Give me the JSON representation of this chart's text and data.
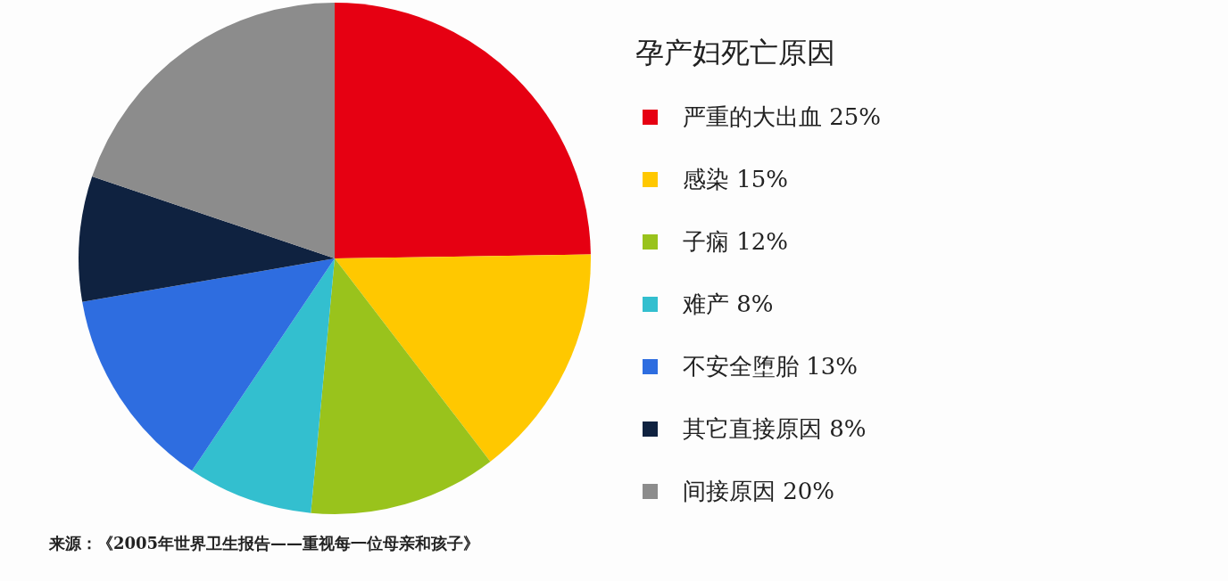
{
  "chart_data": {
    "type": "pie",
    "legend_title": "孕产妇死亡原因",
    "categories": [
      "严重的大出血",
      "感染",
      "子痫",
      "难产",
      "不安全堕胎",
      "其它直接原因",
      "间接原因"
    ],
    "values": [
      25,
      15,
      12,
      8,
      13,
      8,
      20
    ],
    "value_labels": [
      "25%",
      "15%",
      "12%",
      "8%",
      "13%",
      "8%",
      "20%"
    ],
    "colors": [
      "#e60012",
      "#ffc800",
      "#99c31c",
      "#33bfcf",
      "#2e6de0",
      "#0f2240",
      "#8c8c8c"
    ],
    "legend": "right",
    "annotations": [
      "来源：《2005年世界卫生报告——重视每一位母亲和孩子》"
    ]
  }
}
